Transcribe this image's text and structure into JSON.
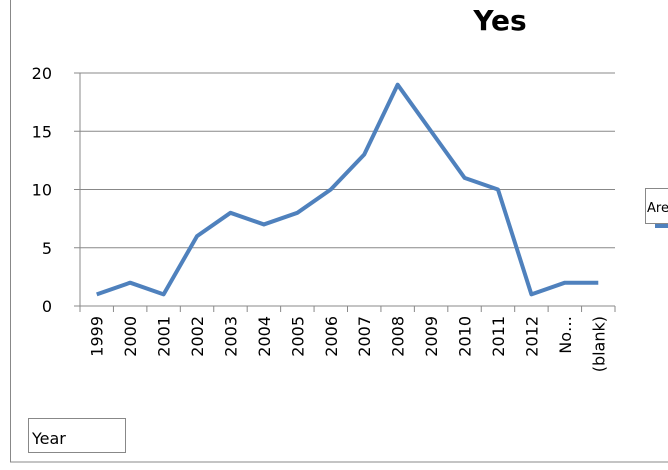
{
  "chart_data": {
    "type": "line",
    "title": "Yes",
    "categories": [
      "1999",
      "2000",
      "2001",
      "2002",
      "2003",
      "2004",
      "2005",
      "2006",
      "2007",
      "2008",
      "2009",
      "2010",
      "2011",
      "2012",
      "No…",
      "(blank)"
    ],
    "series": [
      {
        "name": "Are",
        "color": "#4f81bd",
        "values": [
          1,
          2,
          1,
          6,
          8,
          7,
          8,
          10,
          13,
          19,
          15,
          11,
          10,
          1,
          2,
          2
        ]
      }
    ],
    "ylim": [
      0,
      20
    ],
    "yticks": [
      0,
      5,
      10,
      15,
      20
    ],
    "grid": true,
    "axis_field": "Year"
  }
}
